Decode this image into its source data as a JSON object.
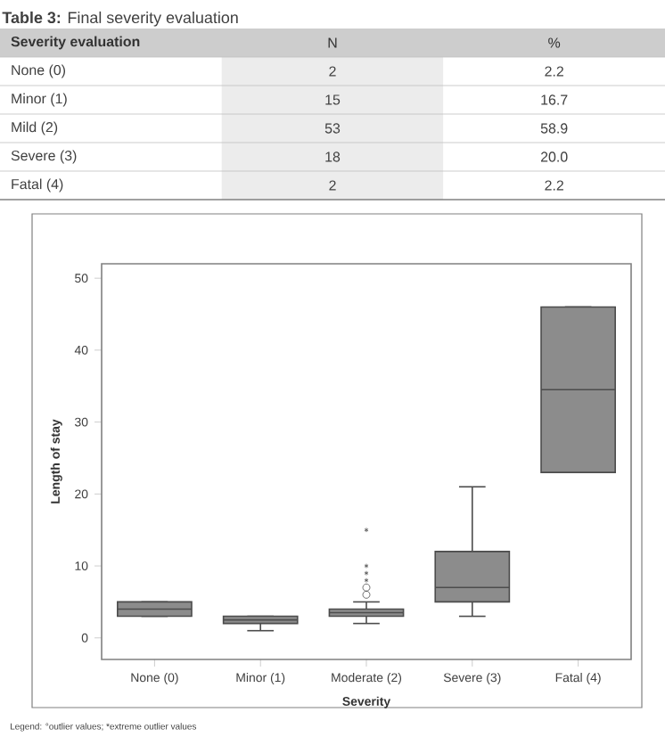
{
  "chart_data": [
    {
      "type": "other",
      "title": "**Table 3:** Final severity evaluation",
      "ylabel": "Severity evaluation",
      "categories": [
        "N",
        "%"
      ],
      "y_categories": [
        "None (0)",
        "Minor (1)",
        "Mild (2)",
        "Severe (3)",
        "Fatal (4)"
      ],
      "cell_labels": [
        [
          "2",
          "2.2"
        ],
        [
          "15",
          "16.7"
        ],
        [
          "53",
          "58.9"
        ],
        [
          "18",
          "20.0"
        ],
        [
          "2",
          "2.2"
        ]
      ]
    },
    {
      "type": "box",
      "xlabel": "Severity",
      "ylabel": "Length of stay",
      "categories": [
        "None (0)",
        "Minor (1)",
        "Moderate (2)",
        "Severe (3)",
        "Fatal (4)"
      ],
      "series": [
        {
          "color": "#8c8c8c",
          "boxes": [
            {
              "low": 3,
              "q1": 3,
              "median": 4,
              "q3": 5,
              "high": 5
            },
            {
              "low": 1,
              "q1": 2,
              "median": 2.5,
              "q3": 3,
              "high": 3
            },
            {
              "low": 2,
              "q1": 3,
              "median": 3.5,
              "q3": 4,
              "high": 5,
              "outliers": [
                6,
                7,
                8,
                9,
                10,
                15
              ]
            },
            {
              "low": 3,
              "q1": 5,
              "median": 7,
              "q3": 12,
              "high": 21
            },
            {
              "low": 23,
              "q1": 23,
              "median": 34.5,
              "q3": 46,
              "high": 46
            }
          ]
        }
      ],
      "ylim": [
        -3,
        52
      ],
      "yticks": [
        0,
        10,
        20,
        30,
        40,
        50
      ],
      "grid": false,
      "annotations": [
        "Legend: °outlier values; *extreme outlier values"
      ]
    }
  ]
}
